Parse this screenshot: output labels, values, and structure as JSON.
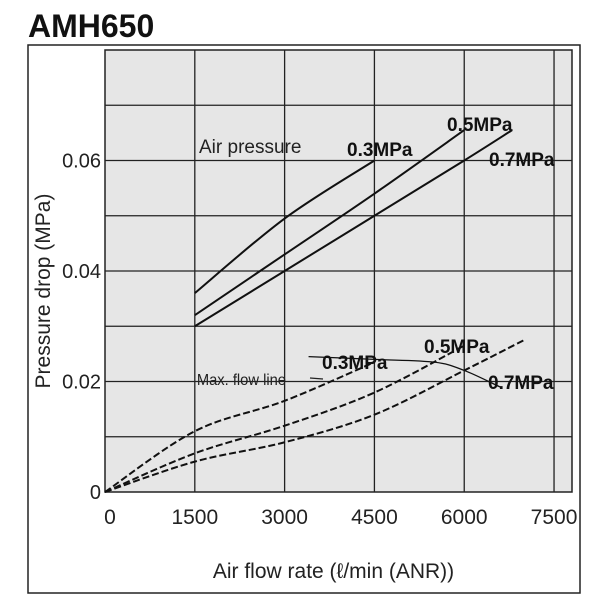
{
  "chart_data": {
    "type": "line",
    "title": "AMH650",
    "xlabel": "Air flow rate (ℓ/min (ANR))",
    "ylabel": "Pressure drop (MPa)",
    "xlim": [
      0,
      7800
    ],
    "ylim": [
      0,
      0.08
    ],
    "xticks": [
      0,
      1500,
      3000,
      4500,
      6000,
      7500
    ],
    "xtick_labels": [
      "0",
      "1500",
      "3000",
      "4500",
      "6000",
      "7500"
    ],
    "yticks": [
      0,
      0.02,
      0.04,
      0.06
    ],
    "ytick_labels": [
      "0",
      "0.02",
      "0.04",
      "0.06"
    ],
    "grid": true,
    "background": "#e6e6e6",
    "group_labels": {
      "solid": "Air pressure",
      "max_flow": "Max. flow line"
    },
    "series": [
      {
        "name": "0.3MPa",
        "style": "solid",
        "points": [
          [
            1500,
            0.036
          ],
          [
            3000,
            0.0495
          ],
          [
            4500,
            0.06
          ]
        ]
      },
      {
        "name": "0.5MPa",
        "style": "solid",
        "points": [
          [
            1500,
            0.032
          ],
          [
            3000,
            0.043
          ],
          [
            4500,
            0.054
          ],
          [
            6000,
            0.0655
          ]
        ]
      },
      {
        "name": "0.7MPa",
        "style": "solid",
        "points": [
          [
            1500,
            0.03
          ],
          [
            3000,
            0.04
          ],
          [
            4500,
            0.05
          ],
          [
            6000,
            0.06
          ],
          [
            6800,
            0.0655
          ]
        ]
      },
      {
        "name": "0.3MPa",
        "style": "dashed",
        "points": [
          [
            0,
            0
          ],
          [
            1500,
            0.011
          ],
          [
            3000,
            0.0165
          ],
          [
            4500,
            0.0235
          ]
        ]
      },
      {
        "name": "0.5MPa",
        "style": "dashed",
        "points": [
          [
            0,
            0
          ],
          [
            1500,
            0.007
          ],
          [
            3000,
            0.012
          ],
          [
            4500,
            0.018
          ],
          [
            6000,
            0.0265
          ]
        ]
      },
      {
        "name": "0.7MPa",
        "style": "dashed",
        "points": [
          [
            0,
            0
          ],
          [
            1500,
            0.0055
          ],
          [
            3000,
            0.009
          ],
          [
            4500,
            0.014
          ],
          [
            6000,
            0.022
          ],
          [
            7000,
            0.0275
          ]
        ]
      },
      {
        "name": "Max. flow line",
        "style": "thin",
        "points": [
          [
            3400,
            0.0245
          ],
          [
            4500,
            0.024
          ],
          [
            5500,
            0.0235
          ],
          [
            6000,
            0.022
          ],
          [
            6600,
            0.019
          ]
        ]
      }
    ]
  }
}
